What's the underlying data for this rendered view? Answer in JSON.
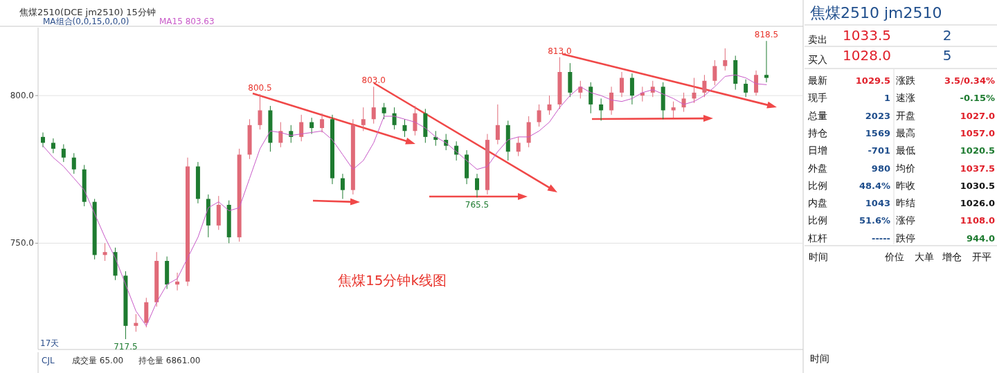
{
  "chart_data": [
    {
      "type": "candlestick",
      "title": "焦煤2510(DCE jm2510)  15分钟",
      "subtitle": "MA组合(0,0,15,0,0,0)",
      "categories": [
        null,
        null,
        null,
        null,
        null,
        null,
        null,
        null,
        null,
        null,
        null,
        null,
        null,
        null,
        null,
        null,
        null,
        null,
        null,
        null,
        null,
        null,
        null,
        null,
        null,
        null,
        null,
        null,
        null,
        null,
        null,
        null,
        null,
        null,
        null,
        null,
        null,
        null,
        null,
        null,
        null,
        null,
        null,
        null,
        null,
        null,
        null,
        null,
        null,
        null,
        null,
        null,
        null,
        null,
        null,
        null,
        null,
        null,
        null,
        null,
        null,
        null,
        null,
        null,
        null,
        null,
        null,
        null,
        null,
        null,
        null
      ],
      "ohlc": [
        [
          786,
          787.5,
          782.5,
          784
        ],
        [
          784,
          785.5,
          780.5,
          782
        ],
        [
          782,
          783.5,
          777.5,
          779
        ],
        [
          779,
          780.5,
          773.5,
          775
        ],
        [
          775,
          776.5,
          762.5,
          764
        ],
        [
          764,
          765,
          744.5,
          746
        ],
        [
          746,
          750,
          744,
          747
        ],
        [
          747,
          748.5,
          737.5,
          739
        ],
        [
          739,
          740.5,
          717.5,
          722
        ],
        [
          722,
          726,
          720,
          723
        ],
        [
          723,
          731.5,
          721.5,
          730
        ],
        [
          730,
          747,
          728.5,
          744
        ],
        [
          744,
          745.5,
          734.5,
          736
        ],
        [
          736,
          740,
          734,
          737
        ],
        [
          737,
          779,
          735.5,
          776
        ],
        [
          776,
          777.5,
          763.5,
          765
        ],
        [
          765,
          766.5,
          752,
          756
        ],
        [
          756,
          766,
          754.5,
          763
        ],
        [
          763,
          764.5,
          750,
          752
        ],
        [
          752,
          782,
          750.5,
          780
        ],
        [
          780,
          792,
          778.5,
          790
        ],
        [
          790,
          800.5,
          788.5,
          795
        ],
        [
          795,
          796.5,
          781,
          784
        ],
        [
          784,
          791,
          782.5,
          788
        ],
        [
          788,
          790,
          784,
          786
        ],
        [
          786,
          793.5,
          784.5,
          791
        ],
        [
          791,
          792.5,
          787,
          789
        ],
        [
          789,
          794,
          787.5,
          792
        ],
        [
          792,
          793.5,
          770,
          772
        ],
        [
          772,
          773.5,
          765,
          768
        ],
        [
          768,
          792,
          766.5,
          790
        ],
        [
          790,
          796,
          788,
          792
        ],
        [
          792,
          803,
          790.5,
          796
        ],
        [
          796,
          797.5,
          792,
          794
        ],
        [
          794,
          796,
          788.5,
          790
        ],
        [
          790,
          792,
          786,
          788
        ],
        [
          788,
          796.5,
          786.5,
          794
        ],
        [
          794,
          795.5,
          784,
          786
        ],
        [
          786,
          788,
          783,
          785
        ],
        [
          785,
          787,
          781.5,
          783
        ],
        [
          783,
          784.5,
          778,
          780
        ],
        [
          780,
          781.5,
          770,
          772
        ],
        [
          772,
          773.5,
          765.5,
          768
        ],
        [
          768,
          787,
          766.5,
          785
        ],
        [
          785,
          797,
          783.5,
          790
        ],
        [
          790,
          791.5,
          778,
          781
        ],
        [
          781,
          786,
          779.5,
          784
        ],
        [
          784,
          793,
          782.5,
          791
        ],
        [
          791,
          797,
          789.5,
          795
        ],
        [
          795,
          800,
          793.5,
          797
        ],
        [
          797,
          813,
          795.5,
          808
        ],
        [
          808,
          811,
          799.5,
          801
        ],
        [
          801,
          805,
          799,
          803
        ],
        [
          803,
          804.5,
          794,
          797
        ],
        [
          797,
          799,
          791.5,
          795
        ],
        [
          795,
          803,
          793.5,
          801
        ],
        [
          801,
          808,
          799.5,
          806
        ],
        [
          806,
          807.5,
          797,
          800
        ],
        [
          800,
          803,
          798,
          801
        ],
        [
          801,
          805,
          799.5,
          803
        ],
        [
          803,
          804.5,
          792,
          795
        ],
        [
          795,
          798,
          792.5,
          796
        ],
        [
          796,
          801,
          794.5,
          799
        ],
        [
          799,
          806,
          797.5,
          801
        ],
        [
          801,
          807,
          799.5,
          805
        ],
        [
          805,
          812,
          803.5,
          810
        ],
        [
          810,
          816,
          808.5,
          812
        ],
        [
          812,
          813.5,
          802,
          804
        ],
        [
          804,
          805.5,
          799.5,
          801
        ],
        [
          801,
          808.5,
          800,
          807
        ],
        [
          807,
          818.5,
          804.5,
          806
        ]
      ],
      "colors": [
        "#1e7b30",
        "#1e7b30",
        "#1e7b30",
        "#1e7b30",
        "#1e7b30",
        "#1e7b30",
        "#e06a78",
        "#1e7b30",
        "#1e7b30",
        "#e06a78",
        "#e06a78",
        "#e06a78",
        "#1e7b30",
        "#e06a78",
        "#e06a78",
        "#1e7b30",
        "#1e7b30",
        "#e06a78",
        "#1e7b30",
        "#e06a78",
        "#e06a78",
        "#e06a78",
        "#1e7b30",
        "#e06a78",
        "#1e7b30",
        "#e06a78",
        "#1e7b30",
        "#e06a78",
        "#1e7b30",
        "#1e7b30",
        "#e06a78",
        "#e06a78",
        "#e06a78",
        "#1e7b30",
        "#1e7b30",
        "#1e7b30",
        "#e06a78",
        "#1e7b30",
        "#1e7b30",
        "#1e7b30",
        "#1e7b30",
        "#1e7b30",
        "#1e7b30",
        "#e06a78",
        "#e06a78",
        "#1e7b30",
        "#e06a78",
        "#e06a78",
        "#e06a78",
        "#e06a78",
        "#e06a78",
        "#1e7b30",
        "#e06a78",
        "#1e7b30",
        "#1e7b30",
        "#e06a78",
        "#e06a78",
        "#1e7b30",
        "#e06a78",
        "#e06a78",
        "#1e7b30",
        "#e06a78",
        "#e06a78",
        "#e06a78",
        "#e06a78",
        "#e06a78",
        "#e06a78",
        "#1e7b30",
        "#1e7b30",
        "#e06a78",
        "#1e7b30"
      ],
      "series": [
        {
          "type": "line",
          "name": "MA15 803.63",
          "color": "#c85ac8",
          "values": [
            783,
            779,
            776,
            772,
            768,
            760,
            752,
            745,
            736,
            727,
            722,
            730,
            736,
            738,
            745,
            752,
            762,
            764,
            761,
            762,
            772,
            782,
            788,
            787.5,
            786.5,
            787,
            787.5,
            788,
            785,
            780,
            775,
            778,
            784,
            793,
            793,
            792,
            791,
            789,
            786,
            784,
            781,
            778,
            775,
            776,
            781,
            785,
            786,
            786,
            788,
            791,
            796,
            800,
            803,
            801,
            800,
            798.5,
            798,
            799,
            801,
            802,
            800.5,
            799,
            797,
            798,
            800,
            803,
            806.5,
            807,
            806,
            804,
            803.7
          ]
        }
      ],
      "ylim": [
        714,
        823
      ],
      "yticks": [
        {
          "value": 800,
          "label": "800.0"
        },
        {
          "value": 750,
          "label": "750.0"
        }
      ],
      "grid": "y",
      "legend": "top left",
      "annotations": [
        {
          "text": "800.5",
          "y": 800.5
        },
        {
          "text": "803.0",
          "y": 803
        },
        {
          "text": "813.0",
          "y": 813
        },
        {
          "text": "818.5",
          "y": 818.5
        },
        {
          "text": "717.5",
          "y": 717.5
        },
        {
          "text": "765.5",
          "y": 765.5
        },
        "焦煤15分钟k线图",
        "17天",
        "CJL",
        "成交量 65.00",
        "持仓量 6861.00"
      ]
    },
    {
      "type": "other",
      "title": "焦煤2510  jm2510",
      "annotations": [
        "卖出",
        "1033.5",
        "2",
        "买入",
        "1028.0",
        "5",
        "最新",
        "1029.5",
        "涨跌",
        "3.5/0.34%",
        "现手",
        "1",
        "速涨",
        "-0.15%",
        "总量",
        "2023",
        "开盘",
        "1027.0",
        "持仓",
        "1569",
        "最高",
        "1057.0",
        "日增",
        "-701",
        "最低",
        "1020.5",
        "外盘",
        "980",
        "均价",
        "1037.5",
        "比例",
        "48.4%",
        "昨收",
        "1030.5",
        "内盘",
        "1043",
        "昨结",
        "1026.0",
        "比例",
        "51.6%",
        "涨停",
        "1108.0",
        "杠杆",
        "-----",
        "跌停",
        "944.0",
        "时间",
        "价位",
        "大单",
        "增仓",
        "开平",
        "时间"
      ]
    }
  ]
}
